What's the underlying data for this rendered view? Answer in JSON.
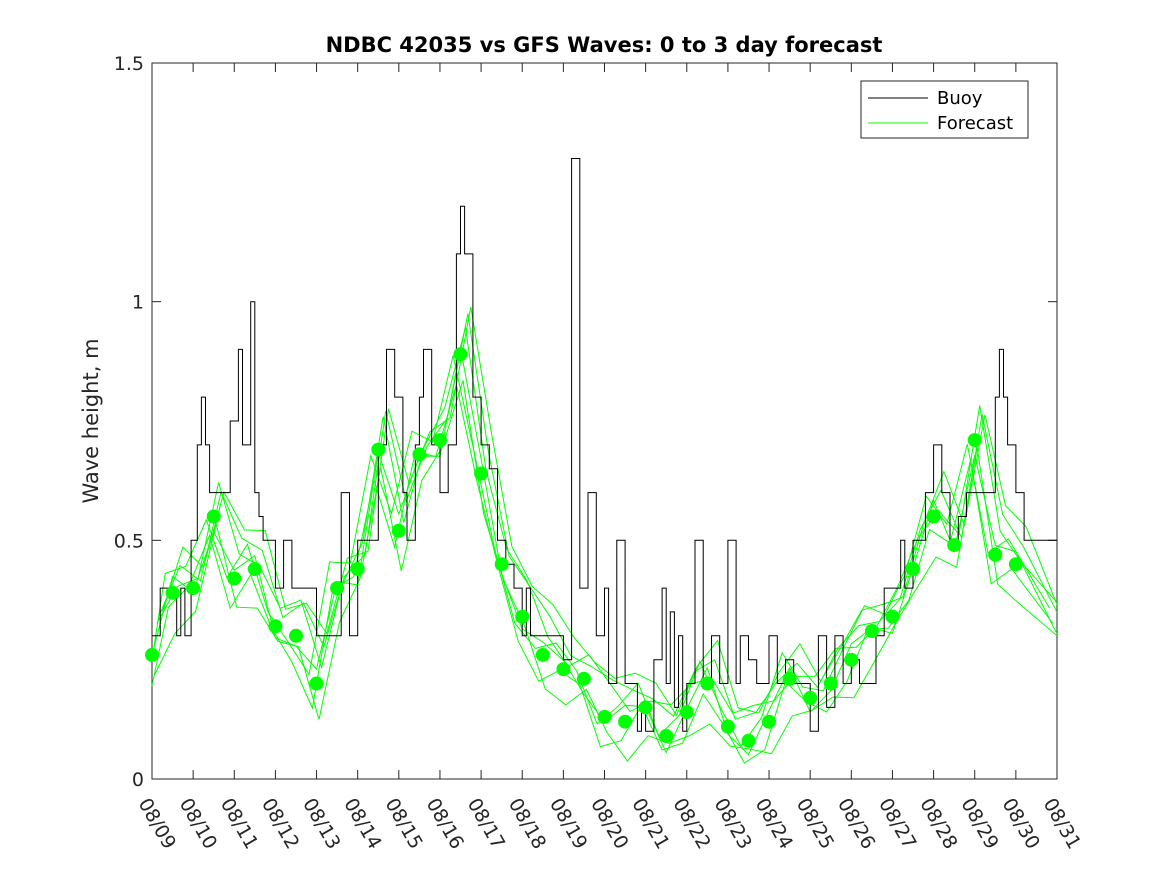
{
  "chart_data": {
    "type": "line",
    "title": "NDBC 42035 vs GFS Waves: 0 to 3 day forecast",
    "xlabel": "",
    "ylabel": "Wave height, m",
    "ylim": [
      0,
      1.5
    ],
    "yticks": [
      0,
      0.5,
      1,
      1.5
    ],
    "ytick_labels": [
      "0",
      "0.5",
      "1",
      "1.5"
    ],
    "xlim_days": [
      0,
      22
    ],
    "xtick_labels": [
      "08/09",
      "08/10",
      "08/11",
      "08/12",
      "08/13",
      "08/14",
      "08/15",
      "08/16",
      "08/17",
      "08/18",
      "08/19",
      "08/20",
      "08/21",
      "08/22",
      "08/23",
      "08/24",
      "08/25",
      "08/26",
      "08/27",
      "08/28",
      "08/29",
      "08/30",
      "08/31"
    ],
    "legend": {
      "position": "top-right",
      "entries": [
        "Buoy",
        "Forecast"
      ]
    },
    "colors": {
      "buoy": "#000000",
      "forecast": "#00ff00"
    },
    "series": [
      {
        "name": "Buoy",
        "x": [
          0,
          0.1,
          0.2,
          0.4,
          0.55,
          0.6,
          0.7,
          0.8,
          0.95,
          1.0,
          1.1,
          1.2,
          1.3,
          1.4,
          1.5,
          1.6,
          1.75,
          1.9,
          2.1,
          2.2,
          2.4,
          2.5,
          2.6,
          2.7,
          2.8,
          3.0,
          3.1,
          3.2,
          3.4,
          3.6,
          3.8,
          4.0,
          4.1,
          4.2,
          4.4,
          4.6,
          4.8,
          5.0,
          5.1,
          5.3,
          5.5,
          5.7,
          5.9,
          6.1,
          6.2,
          6.4,
          6.5,
          6.6,
          6.8,
          7.0,
          7.2,
          7.4,
          7.5,
          7.6,
          7.8,
          8.0,
          8.2,
          8.4,
          8.6,
          8.8,
          9.0,
          9.1,
          9.2,
          9.4,
          9.6,
          9.8,
          10.0,
          10.1,
          10.2,
          10.4,
          10.6,
          10.8,
          11.0,
          11.1,
          11.2,
          11.3,
          11.5,
          11.6,
          11.7,
          11.8,
          11.9,
          12.0,
          12.2,
          12.4,
          12.5,
          12.6,
          12.7,
          12.8,
          12.9,
          13.0,
          13.2,
          13.4,
          13.6,
          13.8,
          14.0,
          14.2,
          14.3,
          14.5,
          14.7,
          14.9,
          15.0,
          15.2,
          15.4,
          15.6,
          15.8,
          16.0,
          16.2,
          16.4,
          16.6,
          16.8,
          17.0,
          17.2,
          17.4,
          17.6,
          17.8,
          18.0,
          18.2,
          18.3,
          18.5,
          18.7,
          18.8,
          19.0,
          19.2,
          19.4,
          19.6,
          19.8,
          20.0,
          20.1,
          20.3,
          20.5,
          20.6,
          20.7,
          20.8,
          21.0,
          21.2,
          21.5,
          22.0
        ],
        "values": [
          0.3,
          0.3,
          0.4,
          0.4,
          0.4,
          0.3,
          0.4,
          0.3,
          0.5,
          0.5,
          0.7,
          0.8,
          0.7,
          0.6,
          0.6,
          0.6,
          0.6,
          0.75,
          0.9,
          0.7,
          1.0,
          0.6,
          0.55,
          0.5,
          0.5,
          0.4,
          0.4,
          0.5,
          0.4,
          0.4,
          0.4,
          0.3,
          0.3,
          0.3,
          0.3,
          0.6,
          0.3,
          0.5,
          0.5,
          0.5,
          0.7,
          0.9,
          0.8,
          0.6,
          0.5,
          0.7,
          0.8,
          0.9,
          0.7,
          0.6,
          0.7,
          1.1,
          1.2,
          1.1,
          0.8,
          0.7,
          0.65,
          0.5,
          0.45,
          0.4,
          0.3,
          0.4,
          0.3,
          0.3,
          0.3,
          0.3,
          0.25,
          0.25,
          1.3,
          0.4,
          0.6,
          0.3,
          0.4,
          0.2,
          0.2,
          0.5,
          0.2,
          0.2,
          0.2,
          0.1,
          0.15,
          0.1,
          0.25,
          0.4,
          0.2,
          0.35,
          0.15,
          0.3,
          0.1,
          0.2,
          0.5,
          0.2,
          0.3,
          0.2,
          0.5,
          0.2,
          0.3,
          0.25,
          0.2,
          0.2,
          0.3,
          0.2,
          0.25,
          0.2,
          0.2,
          0.1,
          0.3,
          0.15,
          0.3,
          0.2,
          0.25,
          0.2,
          0.2,
          0.3,
          0.4,
          0.4,
          0.5,
          0.4,
          0.5,
          0.5,
          0.6,
          0.7,
          0.6,
          0.5,
          0.55,
          0.6,
          0.6,
          0.6,
          0.6,
          0.8,
          0.9,
          0.8,
          0.7,
          0.6,
          0.5,
          0.5,
          0.5
        ]
      },
      {
        "name": "Forecast",
        "x": [
          0,
          0.5,
          1.0,
          1.5,
          2.0,
          2.5,
          3.0,
          3.5,
          4.0,
          4.5,
          5.0,
          5.5,
          6.0,
          6.5,
          7.0,
          7.5,
          8.0,
          8.5,
          9.0,
          9.5,
          10.0,
          10.5,
          11.0,
          11.5,
          12.0,
          12.5,
          13.0,
          13.5,
          14.0,
          14.5,
          15.0,
          15.5,
          16.0,
          16.5,
          17.0,
          17.5,
          18.0,
          18.5,
          19.0,
          19.5,
          20.0,
          20.5,
          21.0,
          22.0
        ],
        "values": [
          0.26,
          0.39,
          0.4,
          0.55,
          0.42,
          0.44,
          0.32,
          0.3,
          0.2,
          0.4,
          0.44,
          0.69,
          0.52,
          0.68,
          0.71,
          0.89,
          0.64,
          0.45,
          0.34,
          0.26,
          0.23,
          0.21,
          0.13,
          0.12,
          0.15,
          0.09,
          0.14,
          0.2,
          0.11,
          0.08,
          0.12,
          0.21,
          0.17,
          0.2,
          0.25,
          0.31,
          0.34,
          0.44,
          0.55,
          0.49,
          0.71,
          0.47,
          0.45,
          0.33
        ]
      }
    ]
  }
}
